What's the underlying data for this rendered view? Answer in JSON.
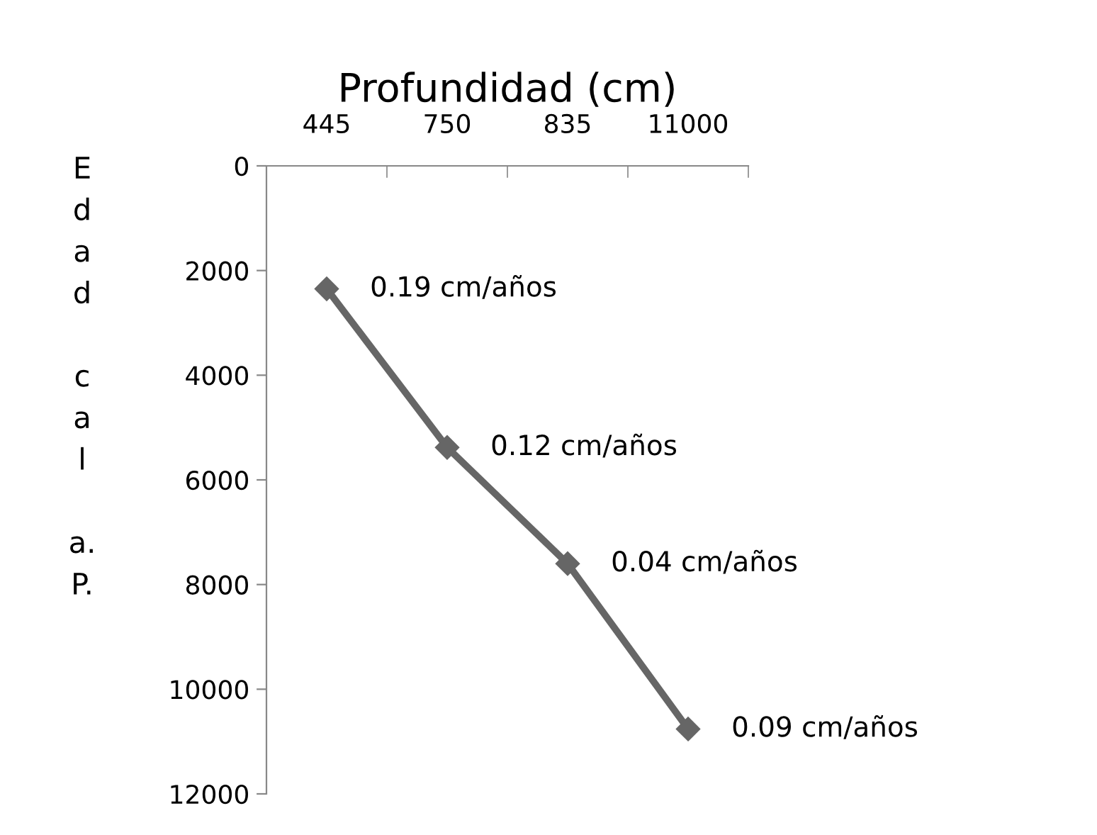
{
  "chart_data": {
    "type": "line",
    "xlabel": "Profundidad (cm)",
    "ylabel": "Edad cal a. P.",
    "categories": [
      "445",
      "750",
      "835",
      "11000"
    ],
    "series": [
      {
        "color": "#666666",
        "values": [
          2350,
          5380,
          7600,
          10760
        ]
      }
    ],
    "ylim": [
      12000,
      0
    ],
    "yticks": [
      0,
      2000,
      4000,
      6000,
      8000,
      10000,
      12000
    ],
    "grid": false,
    "marker": "diamond",
    "line_style": "solid",
    "annotations": [
      {
        "text": "0.19 cm/años",
        "x": "445",
        "y": 2350
      },
      {
        "text": "0.12 cm/años",
        "x": "750",
        "y": 5380
      },
      {
        "text": "0.04 cm/años",
        "x": "835",
        "y": 7600
      },
      {
        "text": "0.09 cm/años",
        "x": "11000",
        "y": 10760
      }
    ]
  }
}
